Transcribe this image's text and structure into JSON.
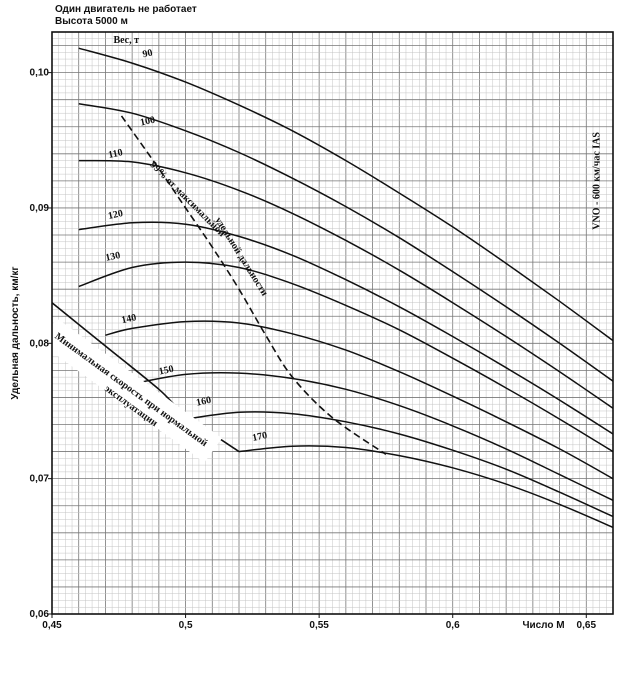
{
  "header": {
    "line1": "Один двигатель не работает",
    "line2": "Высота 5000 м"
  },
  "chart_data": {
    "type": "line",
    "title": "Один двигатель не работает",
    "subtitle": "Высота 5000 м",
    "xlabel": "Число М",
    "ylabel": "Удельная дальность, км/кг",
    "xlim": [
      0.45,
      0.66
    ],
    "ylim": [
      0.06,
      0.103
    ],
    "x_ticks": [
      {
        "v": 0.45,
        "label": "0,45"
      },
      {
        "v": 0.5,
        "label": "0,5"
      },
      {
        "v": 0.55,
        "label": "0,55"
      },
      {
        "v": 0.6,
        "label": "0,6"
      },
      {
        "v": 0.65,
        "label": "0,65"
      }
    ],
    "y_ticks": [
      {
        "v": 0.06,
        "label": "0,06"
      },
      {
        "v": 0.07,
        "label": "0,07"
      },
      {
        "v": 0.08,
        "label": "0,08"
      },
      {
        "v": 0.09,
        "label": "0,09"
      },
      {
        "v": 0.1,
        "label": "0,10"
      }
    ],
    "grid": true,
    "legend_title": "Вес, т",
    "series": [
      {
        "name": "90",
        "label_at": [
          0.486,
          0.1012
        ],
        "x": [
          0.46,
          0.48,
          0.5,
          0.52,
          0.54,
          0.56,
          0.58,
          0.6,
          0.62,
          0.64,
          0.66
        ],
        "y": [
          0.1018,
          0.1007,
          0.0993,
          0.0976,
          0.0957,
          0.0935,
          0.0911,
          0.0886,
          0.0859,
          0.0831,
          0.0802
        ]
      },
      {
        "name": "100",
        "label_at": [
          0.486,
          0.0962
        ],
        "x": [
          0.46,
          0.48,
          0.5,
          0.52,
          0.54,
          0.56,
          0.58,
          0.6,
          0.62,
          0.64,
          0.66
        ],
        "y": [
          0.0977,
          0.097,
          0.0957,
          0.0941,
          0.0922,
          0.0901,
          0.0878,
          0.0853,
          0.0827,
          0.08,
          0.0772
        ]
      },
      {
        "name": "110",
        "label_at": [
          0.474,
          0.0938
        ],
        "x": [
          0.46,
          0.48,
          0.5,
          0.52,
          0.54,
          0.56,
          0.58,
          0.6,
          0.62,
          0.64,
          0.66
        ],
        "y": [
          0.0935,
          0.0934,
          0.0926,
          0.0913,
          0.0896,
          0.0876,
          0.0854,
          0.083,
          0.0805,
          0.0779,
          0.0752
        ]
      },
      {
        "name": "120",
        "label_at": [
          0.474,
          0.0893
        ],
        "x": [
          0.46,
          0.48,
          0.5,
          0.52,
          0.54,
          0.56,
          0.58,
          0.6,
          0.62,
          0.64,
          0.66
        ],
        "y": [
          0.0884,
          0.0889,
          0.0888,
          0.0879,
          0.0865,
          0.0847,
          0.0827,
          0.0805,
          0.0782,
          0.0758,
          0.0733
        ]
      },
      {
        "name": "130",
        "label_at": [
          0.473,
          0.0862
        ],
        "x": [
          0.46,
          0.48,
          0.5,
          0.52,
          0.54,
          0.56,
          0.58,
          0.6,
          0.62,
          0.64,
          0.66
        ],
        "y": [
          0.0842,
          0.0856,
          0.086,
          0.0856,
          0.0844,
          0.0828,
          0.081,
          0.0789,
          0.0767,
          0.0744,
          0.072
        ]
      },
      {
        "name": "140",
        "label_at": [
          0.479,
          0.0816
        ],
        "x": [
          0.47,
          0.48,
          0.5,
          0.52,
          0.54,
          0.56,
          0.58,
          0.6,
          0.62,
          0.64,
          0.66
        ],
        "y": [
          0.0806,
          0.0811,
          0.0816,
          0.0815,
          0.0807,
          0.0795,
          0.0779,
          0.0761,
          0.0742,
          0.0722,
          0.07
        ]
      },
      {
        "name": "150",
        "label_at": [
          0.493,
          0.0778
        ],
        "x": [
          0.48,
          0.5,
          0.52,
          0.54,
          0.56,
          0.58,
          0.6,
          0.62,
          0.64,
          0.66
        ],
        "y": [
          0.077,
          0.0777,
          0.0778,
          0.0774,
          0.0766,
          0.0754,
          0.0739,
          0.0722,
          0.0703,
          0.0684
        ]
      },
      {
        "name": "160",
        "label_at": [
          0.507,
          0.0755
        ],
        "x": [
          0.5,
          0.52,
          0.54,
          0.56,
          0.58,
          0.6,
          0.62,
          0.64,
          0.66
        ],
        "y": [
          0.0744,
          0.0749,
          0.0748,
          0.0742,
          0.0733,
          0.0721,
          0.0707,
          0.069,
          0.0672
        ]
      },
      {
        "name": "170",
        "label_at": [
          0.528,
          0.0729
        ],
        "x": [
          0.52,
          0.54,
          0.56,
          0.58,
          0.6,
          0.62,
          0.64,
          0.66
        ],
        "y": [
          0.072,
          0.0724,
          0.0723,
          0.0717,
          0.0708,
          0.0696,
          0.0681,
          0.0664
        ]
      }
    ],
    "reference_lines": [
      {
        "name": "99% от максимальной удельной дальности",
        "style": "dashed",
        "x": [
          0.476,
          0.49,
          0.5,
          0.51,
          0.52,
          0.53,
          0.54,
          0.555,
          0.575
        ],
        "y": [
          0.0968,
          0.0929,
          0.09,
          0.0871,
          0.084,
          0.0806,
          0.0775,
          0.0745,
          0.0718
        ]
      },
      {
        "name": "Минимальная скорость при нормальной эксплуатации",
        "style": "solid",
        "x": [
          0.45,
          0.47,
          0.49,
          0.5,
          0.52
        ],
        "y": [
          0.083,
          0.0798,
          0.0766,
          0.0747,
          0.072
        ]
      }
    ],
    "annotations": [
      {
        "name": "top-dash-label",
        "text": "99% от максимальной",
        "at": [
          0.5,
          0.0905
        ],
        "rotate": 45
      },
      {
        "name": "bottom-dash-label",
        "text": "удельной дальности",
        "at": [
          0.52,
          0.0863
        ],
        "rotate": 58
      },
      {
        "name": "min-speed-label-1",
        "text": "Минимальная скорость при нормальной",
        "at": [
          0.479,
          0.0764
        ],
        "rotate": 36
      },
      {
        "name": "min-speed-label-2",
        "text": "эксплуатации",
        "at": [
          0.479,
          0.0752
        ],
        "rotate": 36
      },
      {
        "name": "right-label",
        "text": "VNO - 600 км/час IAS",
        "at": [
          0.655,
          0.092
        ],
        "rotate": -90
      }
    ]
  }
}
